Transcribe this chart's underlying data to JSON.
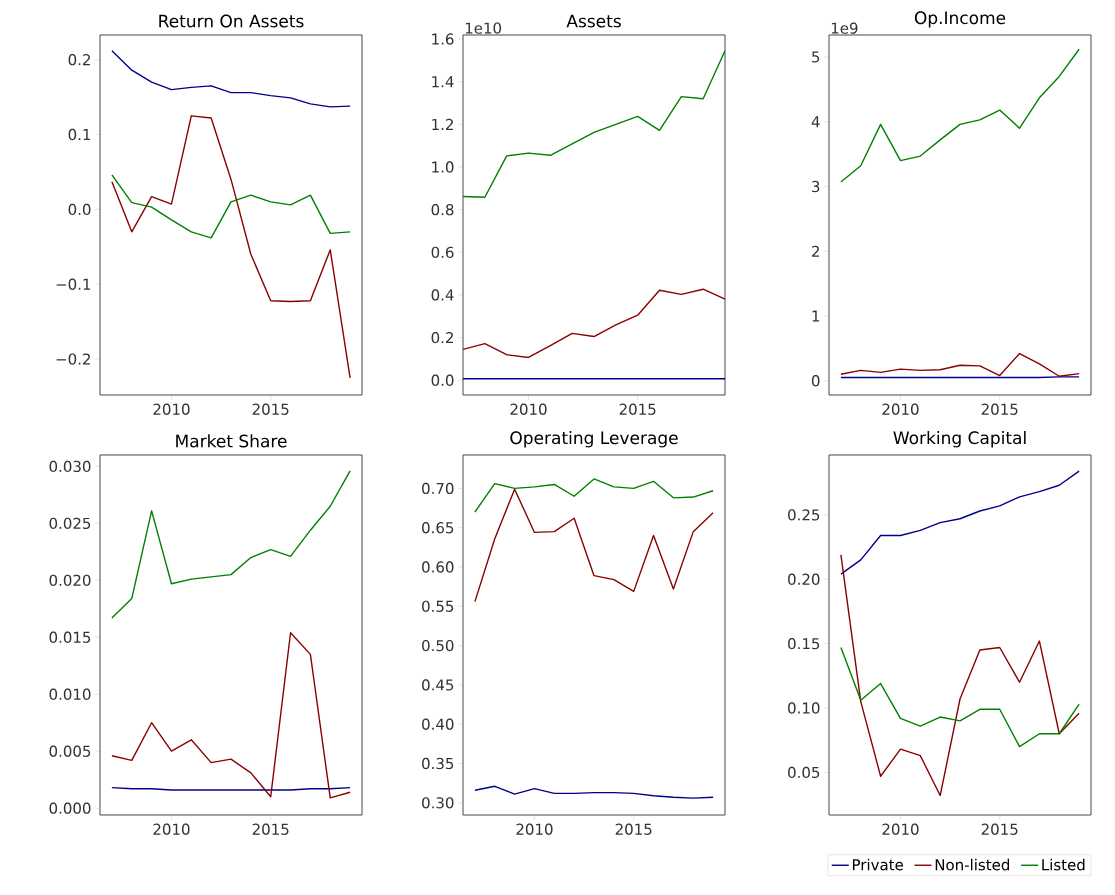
{
  "chart_data": [
    {
      "type": "line",
      "title": "Return On Assets",
      "x": [
        2007,
        2008,
        2009,
        2010,
        2011,
        2012,
        2013,
        2014,
        2015,
        2016,
        2017,
        2018,
        2019
      ],
      "xlim": [
        2006.4,
        2019.6
      ],
      "xticks": [
        2010,
        2015
      ],
      "ylim": [
        -0.248,
        0.233
      ],
      "yticks": [
        {
          "value": -0.2,
          "label": "−0.2"
        },
        {
          "value": -0.1,
          "label": "−0.1"
        },
        {
          "value": 0,
          "label": "0.0"
        },
        {
          "value": 0.1,
          "label": "0.1"
        },
        {
          "value": 0.2,
          "label": "0.2"
        }
      ],
      "series": [
        {
          "color": "#00008b",
          "values": [
            0.212,
            0.186,
            0.17,
            0.16,
            0.163,
            0.165,
            0.156,
            0.156,
            0.152,
            0.149,
            0.141,
            0.137,
            0.138
          ]
        },
        {
          "color": "#8b0000",
          "values": [
            0.037,
            -0.03,
            0.017,
            0.007,
            0.125,
            0.122,
            0.04,
            -0.06,
            -0.122,
            -0.123,
            -0.122,
            -0.054,
            -0.225
          ]
        },
        {
          "color": "#008000",
          "values": [
            0.046,
            0.009,
            0.003,
            -0.014,
            -0.03,
            -0.038,
            0.01,
            0.019,
            0.01,
            0.006,
            0.019,
            -0.032,
            -0.03
          ]
        }
      ]
    },
    {
      "type": "line",
      "title": "Assets",
      "annotations": [
        "1e10"
      ],
      "x": [
        2007,
        2008,
        2009,
        2010,
        2011,
        2012,
        2013,
        2014,
        2015,
        2016,
        2017,
        2018,
        2019
      ],
      "xlim": [
        2007,
        2019
      ],
      "xticks": [
        2010,
        2015
      ],
      "ylim": [
        -0.069,
        1.619
      ],
      "yticks": [
        {
          "value": 0,
          "label": "0.0"
        },
        {
          "value": 0.2,
          "label": "0.2"
        },
        {
          "value": 0.4,
          "label": "0.4"
        },
        {
          "value": 0.6,
          "label": "0.6"
        },
        {
          "value": 0.8,
          "label": "0.8"
        },
        {
          "value": 1.0,
          "label": "1.0"
        },
        {
          "value": 1.2,
          "label": "1.2"
        },
        {
          "value": 1.4,
          "label": "1.4"
        },
        {
          "value": 1.6,
          "label": "1.6"
        }
      ],
      "series": [
        {
          "color": "#00008b",
          "values": [
            0.007,
            0.007,
            0.007,
            0.007,
            0.007,
            0.007,
            0.007,
            0.007,
            0.007,
            0.007,
            0.007,
            0.007,
            0.007
          ]
        },
        {
          "color": "#8b0000",
          "values": [
            0.145,
            0.172,
            0.12,
            0.107,
            0.163,
            0.22,
            0.205,
            0.26,
            0.305,
            0.422,
            0.403,
            0.427,
            0.38
          ]
        },
        {
          "color": "#008000",
          "values": [
            0.862,
            0.858,
            1.052,
            1.065,
            1.055,
            1.108,
            1.162,
            1.2,
            1.237,
            1.172,
            1.33,
            1.32,
            1.545
          ]
        }
      ]
    },
    {
      "type": "line",
      "title": "Op.Income",
      "annotations": [
        "1e9"
      ],
      "x": [
        2007,
        2008,
        2009,
        2010,
        2011,
        2012,
        2013,
        2014,
        2015,
        2016,
        2017,
        2018,
        2019
      ],
      "xlim": [
        2006.4,
        2019.6
      ],
      "xticks": [
        2010,
        2015
      ],
      "ylim": [
        -0.22,
        5.34
      ],
      "yticks": [
        {
          "value": 0,
          "label": "0"
        },
        {
          "value": 1,
          "label": "1"
        },
        {
          "value": 2,
          "label": "2"
        },
        {
          "value": 3,
          "label": "3"
        },
        {
          "value": 4,
          "label": "4"
        },
        {
          "value": 5,
          "label": "5"
        }
      ],
      "series": [
        {
          "color": "#00008b",
          "values": [
            0.05,
            0.05,
            0.05,
            0.05,
            0.05,
            0.05,
            0.05,
            0.05,
            0.05,
            0.05,
            0.05,
            0.06,
            0.06
          ]
        },
        {
          "color": "#8b0000",
          "values": [
            0.1,
            0.16,
            0.13,
            0.18,
            0.16,
            0.17,
            0.24,
            0.23,
            0.08,
            0.42,
            0.26,
            0.07,
            0.11
          ]
        },
        {
          "color": "#008000",
          "values": [
            3.07,
            3.32,
            3.96,
            3.4,
            3.47,
            3.72,
            3.96,
            4.03,
            4.18,
            3.9,
            4.37,
            4.7,
            5.12
          ]
        }
      ]
    },
    {
      "type": "line",
      "title": "Market Share",
      "x": [
        2007,
        2008,
        2009,
        2010,
        2011,
        2012,
        2013,
        2014,
        2015,
        2016,
        2017,
        2018,
        2019
      ],
      "xlim": [
        2006.4,
        2019.6
      ],
      "xticks": [
        2010,
        2015
      ],
      "ylim": [
        -0.0006,
        0.031
      ],
      "yticks": [
        {
          "value": 0,
          "label": "0.000"
        },
        {
          "value": 0.005,
          "label": "0.005"
        },
        {
          "value": 0.01,
          "label": "0.010"
        },
        {
          "value": 0.015,
          "label": "0.015"
        },
        {
          "value": 0.02,
          "label": "0.020"
        },
        {
          "value": 0.025,
          "label": "0.025"
        },
        {
          "value": 0.03,
          "label": "0.030"
        }
      ],
      "series": [
        {
          "color": "#00008b",
          "values": [
            0.0018,
            0.0017,
            0.0017,
            0.0016,
            0.0016,
            0.0016,
            0.0016,
            0.0016,
            0.0016,
            0.0016,
            0.0017,
            0.0017,
            0.0018
          ]
        },
        {
          "color": "#8b0000",
          "values": [
            0.0046,
            0.0042,
            0.0075,
            0.005,
            0.006,
            0.004,
            0.0043,
            0.0031,
            0.001,
            0.0154,
            0.0135,
            0.0009,
            0.0014
          ]
        },
        {
          "color": "#008000",
          "values": [
            0.0167,
            0.0184,
            0.0261,
            0.0197,
            0.0201,
            0.0203,
            0.0205,
            0.022,
            0.0227,
            0.0221,
            0.0244,
            0.0265,
            0.0296
          ]
        }
      ]
    },
    {
      "type": "line",
      "title": "Operating Leverage",
      "x": [
        2007,
        2008,
        2009,
        2010,
        2011,
        2012,
        2013,
        2014,
        2015,
        2016,
        2017,
        2018,
        2019
      ],
      "xlim": [
        2006.4,
        2019.6
      ],
      "xticks": [
        2010,
        2015
      ],
      "ylim": [
        0.2845,
        0.7425
      ],
      "yticks": [
        {
          "value": 0.3,
          "label": "0.30"
        },
        {
          "value": 0.35,
          "label": "0.35"
        },
        {
          "value": 0.4,
          "label": "0.40"
        },
        {
          "value": 0.45,
          "label": "0.45"
        },
        {
          "value": 0.5,
          "label": "0.50"
        },
        {
          "value": 0.55,
          "label": "0.55"
        },
        {
          "value": 0.6,
          "label": "0.60"
        },
        {
          "value": 0.65,
          "label": "0.65"
        },
        {
          "value": 0.7,
          "label": "0.70"
        }
      ],
      "series": [
        {
          "color": "#00008b",
          "values": [
            0.316,
            0.321,
            0.311,
            0.318,
            0.312,
            0.312,
            0.313,
            0.313,
            0.312,
            0.309,
            0.307,
            0.306,
            0.307
          ]
        },
        {
          "color": "#8b0000",
          "values": [
            0.556,
            0.636,
            0.699,
            0.644,
            0.645,
            0.662,
            0.589,
            0.584,
            0.569,
            0.64,
            0.572,
            0.645,
            0.669
          ]
        },
        {
          "color": "#008000",
          "values": [
            0.67,
            0.706,
            0.7,
            0.702,
            0.705,
            0.69,
            0.712,
            0.702,
            0.7,
            0.709,
            0.688,
            0.689,
            0.697
          ]
        }
      ]
    },
    {
      "type": "line",
      "title": "Working Capital",
      "x": [
        2007,
        2008,
        2009,
        2010,
        2011,
        2012,
        2013,
        2014,
        2015,
        2016,
        2017,
        2018,
        2019
      ],
      "xlim": [
        2006.4,
        2019.6
      ],
      "xticks": [
        2010,
        2015
      ],
      "ylim": [
        0.0169,
        0.2965
      ],
      "yticks": [
        {
          "value": 0.05,
          "label": "0.05"
        },
        {
          "value": 0.1,
          "label": "0.10"
        },
        {
          "value": 0.15,
          "label": "0.15"
        },
        {
          "value": 0.2,
          "label": "0.20"
        },
        {
          "value": 0.25,
          "label": "0.25"
        }
      ],
      "legend": "bottom",
      "series": [
        {
          "name": "Private",
          "color": "#00008b",
          "values": [
            0.204,
            0.215,
            0.234,
            0.234,
            0.238,
            0.244,
            0.247,
            0.253,
            0.257,
            0.264,
            0.268,
            0.273,
            0.284
          ]
        },
        {
          "name": "Non-listed",
          "color": "#8b0000",
          "values": [
            0.219,
            0.105,
            0.047,
            0.068,
            0.063,
            0.032,
            0.107,
            0.145,
            0.147,
            0.12,
            0.152,
            0.08,
            0.096
          ]
        },
        {
          "name": "Listed",
          "color": "#008000",
          "values": [
            0.147,
            0.106,
            0.119,
            0.092,
            0.086,
            0.093,
            0.09,
            0.099,
            0.099,
            0.07,
            0.08,
            0.08,
            0.103
          ]
        }
      ]
    }
  ]
}
